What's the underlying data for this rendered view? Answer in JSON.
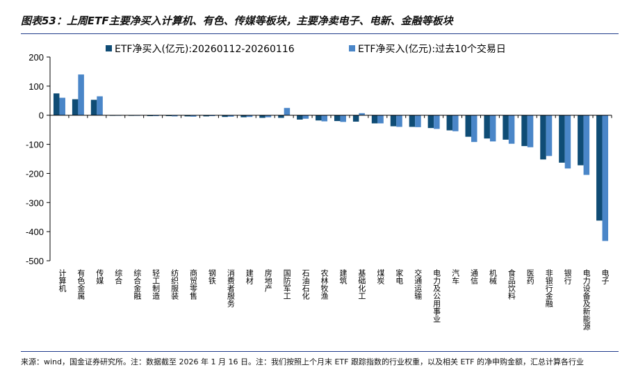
{
  "header": {
    "title": "图表53：上周ETF主要净买入计算机、有色、传媒等板块，主要净卖电子、电新、金融等板块"
  },
  "footer": {
    "note": "来源：wind，国金证券研究所。注：数据截至 2026 年 1 月 16 日。注：我们按照上个月末 ETF 跟踪指数的行业权重，以及相关 ETF 的净申购金额，汇总计算各行业"
  },
  "colors": {
    "series1": "#0f4c75",
    "series2": "#4a86c8"
  },
  "chart_data": {
    "type": "bar",
    "ylim": [
      -500,
      200
    ],
    "yticks": [
      200,
      100,
      0,
      -100,
      -200,
      -300,
      -400,
      -500
    ],
    "grid": false,
    "legend_position": "top",
    "categories": [
      "计算机",
      "有色金属",
      "传媒",
      "综合",
      "综合金融",
      "轻工制造",
      "纺织服装",
      "商贸零售",
      "钢铁",
      "消费者服务",
      "建材",
      "房地产",
      "国防军工",
      "石油石化",
      "农林牧渔",
      "建筑",
      "基础化工",
      "煤炭",
      "家电",
      "交通运输",
      "电力及公用事业",
      "汽车",
      "通信",
      "机械",
      "食品饮料",
      "医药",
      "非银行金融",
      "银行",
      "电力设备及新能源",
      "电子"
    ],
    "series": [
      {
        "name": "ETF净买入(亿元):20260112-20260116",
        "values": [
          75,
          55,
          53,
          -1,
          -2,
          -3,
          -3,
          -4,
          -4,
          -6,
          -7,
          -9,
          -9,
          -15,
          -18,
          -20,
          -22,
          -28,
          -38,
          -40,
          -44,
          -52,
          -74,
          -80,
          -84,
          -106,
          -152,
          -163,
          -172,
          -362
        ]
      },
      {
        "name": "ETF净买入(亿元):过去10个交易日",
        "values": [
          60,
          140,
          65,
          -1,
          -2,
          -3,
          -4,
          -5,
          -3,
          -5,
          -6,
          -7,
          25,
          -12,
          -21,
          -23,
          7,
          -28,
          -40,
          -41,
          -47,
          -55,
          -92,
          -90,
          -98,
          -110,
          -140,
          -183,
          -205,
          -432
        ]
      }
    ]
  }
}
